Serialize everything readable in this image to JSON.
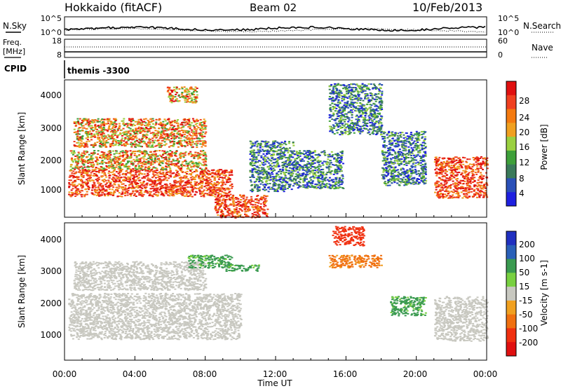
{
  "header": {
    "station": "Hokkaido (fitACF)",
    "beam": "Beam 02",
    "date": "10/Feb/2013"
  },
  "noise_panel": {
    "left_label": "N.Sky",
    "left_ticks": [
      "10^5",
      "10^0"
    ],
    "right_ticks": [
      "10^5",
      "10^0"
    ],
    "right_label": "N.Search"
  },
  "freq_panel": {
    "left_label_1": "Freq.",
    "left_label_2": "[MHz]",
    "left_ticks": [
      "18",
      "8"
    ],
    "right_ticks": [
      "60",
      "0"
    ],
    "right_label": "Nave"
  },
  "cpid_panel": {
    "label": "CPID",
    "text": "themis -3300"
  },
  "x_axis": {
    "ticks": [
      "00:00",
      "04:00",
      "08:00",
      "12:00",
      "16:00",
      "20:00",
      "00:00"
    ],
    "label": "Time UT"
  },
  "panels": {
    "power": {
      "ylabel": "Slant Range [km]",
      "yticks": [
        "4000",
        "3000",
        "2000",
        "1000"
      ],
      "cbar_label": "Power [dB]",
      "cbar_ticks": [
        "28",
        "24",
        "20",
        "16",
        "12",
        "8",
        "4"
      ],
      "cbar_colors": [
        "#e01010",
        "#f04020",
        "#f47a10",
        "#f0a020",
        "#9ad040",
        "#3ea03a",
        "#3a7a5a",
        "#2a50b8",
        "#1e20e0"
      ]
    },
    "velocity": {
      "ylabel": "Slant Range [km]",
      "yticks": [
        "4000",
        "3000",
        "2000",
        "1000"
      ],
      "cbar_label": "Velocity [m s-1]",
      "cbar_ticks": [
        "200",
        "100",
        "50",
        "15",
        "-15",
        "-50",
        "-100",
        "-200"
      ],
      "cbar_colors": [
        "#2030c0",
        "#2a60b8",
        "#3a9a50",
        "#78d040",
        "#c8c8c0",
        "#f0a020",
        "#f07010",
        "#f03010",
        "#e01010"
      ]
    }
  },
  "chart_data": {
    "type": "heatmap",
    "x_range_hours": [
      0,
      24
    ],
    "y_range_km": [
      180,
      4500
    ],
    "power_regions": [
      {
        "t": [
          0.2,
          9.5
        ],
        "r": [
          850,
          1700
        ],
        "level": "high"
      },
      {
        "t": [
          0.3,
          8.0
        ],
        "r": [
          1700,
          2300
        ],
        "level": "medium"
      },
      {
        "t": [
          0.5,
          8.0
        ],
        "r": [
          2400,
          3300
        ],
        "level": "medium"
      },
      {
        "t": [
          5.8,
          7.5
        ],
        "r": [
          3800,
          4300
        ],
        "level": "medium"
      },
      {
        "t": [
          8.5,
          11.5
        ],
        "r": [
          180,
          900
        ],
        "level": "high"
      },
      {
        "t": [
          10.5,
          13.0
        ],
        "r": [
          1000,
          2600
        ],
        "level": "low"
      },
      {
        "t": [
          13.0,
          15.8
        ],
        "r": [
          1100,
          2300
        ],
        "level": "low"
      },
      {
        "t": [
          15.0,
          18.0
        ],
        "r": [
          2800,
          4400
        ],
        "level": "low"
      },
      {
        "t": [
          18.0,
          20.5
        ],
        "r": [
          1200,
          2900
        ],
        "level": "low"
      },
      {
        "t": [
          21.0,
          24.0
        ],
        "r": [
          800,
          2100
        ],
        "level": "high"
      }
    ],
    "velocity_regions": [
      {
        "t": [
          0.2,
          10.0
        ],
        "r": [
          850,
          2300
        ],
        "value": 0
      },
      {
        "t": [
          0.5,
          8.0
        ],
        "r": [
          2400,
          3300
        ],
        "value": 0
      },
      {
        "t": [
          7.0,
          9.5
        ],
        "r": [
          3100,
          3500
        ],
        "value": 40
      },
      {
        "t": [
          9.0,
          11.0
        ],
        "r": [
          3000,
          3200
        ],
        "value": 40
      },
      {
        "t": [
          15.0,
          18.0
        ],
        "r": [
          3100,
          3500
        ],
        "value": -60
      },
      {
        "t": [
          15.2,
          17.0
        ],
        "r": [
          3800,
          4400
        ],
        "value": -150
      },
      {
        "t": [
          18.5,
          20.5
        ],
        "r": [
          1600,
          2200
        ],
        "value": 40
      },
      {
        "t": [
          21.0,
          24.0
        ],
        "r": [
          800,
          2200
        ],
        "value": 0
      }
    ]
  }
}
